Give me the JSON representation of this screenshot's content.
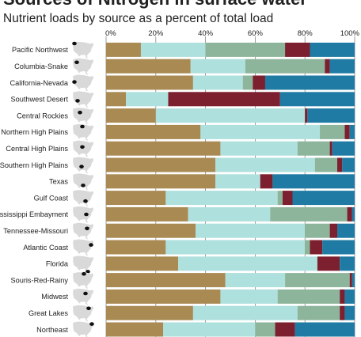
{
  "header": {
    "title": "Sources of Nitrogen in surface water",
    "subtitle": "Nutrient loads by source as a percent of total load"
  },
  "colors": {
    "series": [
      "#a98a53",
      "#aee0de",
      "#8db59b",
      "#7c1f2e",
      "#1f7ba3"
    ],
    "map_land": "#d9d9d9",
    "map_region": "#111111",
    "grid": "#888888"
  },
  "chart_data": {
    "type": "bar",
    "orientation": "horizontal",
    "stacked": true,
    "title": "Sources of Nitrogen in surface water",
    "subtitle": "Nutrient loads by source as a percent of total load",
    "xlim": [
      0,
      100
    ],
    "x_ticks": [
      "0%",
      "20%",
      "40%",
      "60%",
      "80%",
      "100%"
    ],
    "grid": true,
    "legend": "none",
    "categories": [
      "Pacific Northwest",
      "Columbia-Snake",
      "California-Nevada",
      "Southwest Desert",
      "Central Rockies",
      "Northern High Plains",
      "Central High Plains",
      "Southern High Plains",
      "Texas",
      "Gulf Coast",
      "Mississippi Embayment",
      "Tennessee-Missouri",
      "Atlantic Coast",
      "Florida",
      "Souris-Red-Rainy",
      "Midwest",
      "Great Lakes",
      "Northeast"
    ],
    "series": [
      {
        "values": [
          14,
          34,
          35,
          8,
          20,
          38,
          46,
          44,
          44,
          24,
          33,
          36,
          24,
          29,
          48,
          46,
          35,
          23
        ]
      },
      {
        "values": [
          26,
          22,
          20,
          17,
          60,
          48,
          31,
          40,
          18,
          45,
          33,
          44,
          56,
          56,
          24,
          23,
          42,
          37
        ]
      },
      {
        "values": [
          32,
          32,
          4,
          0,
          0,
          10,
          13,
          9,
          0,
          2,
          31,
          10,
          2,
          0,
          26,
          25,
          17,
          8
        ]
      },
      {
        "values": [
          10,
          2,
          5,
          45,
          1,
          2,
          1,
          2,
          5,
          4,
          2,
          3,
          5,
          9,
          1,
          2,
          2,
          8
        ]
      },
      {
        "values": [
          18,
          10,
          36,
          30,
          19,
          2,
          9,
          5,
          33,
          25,
          1,
          7,
          13,
          6,
          1,
          4,
          4,
          24
        ]
      }
    ]
  }
}
